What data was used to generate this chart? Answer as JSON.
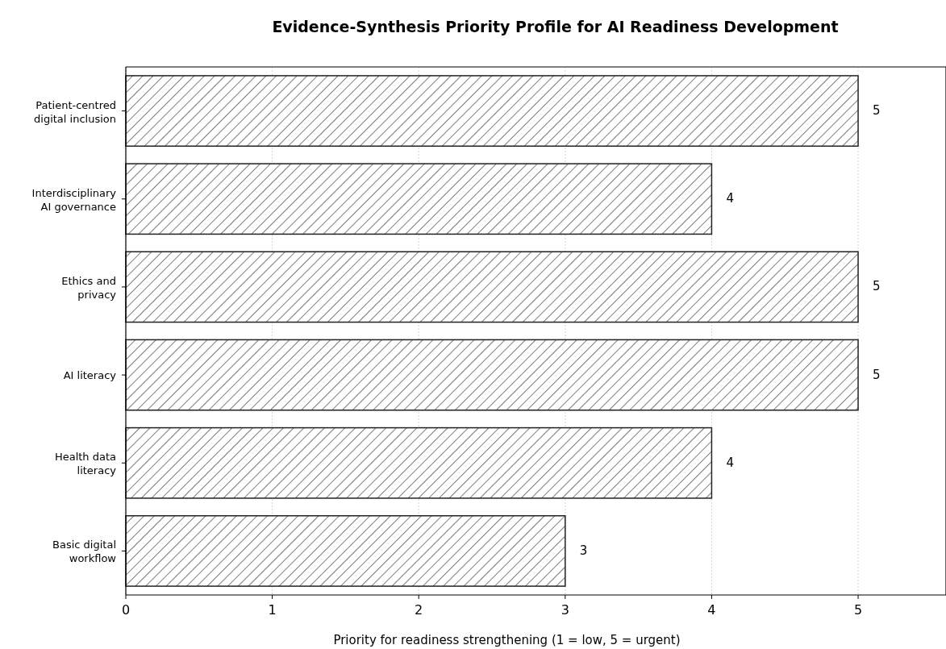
{
  "chart_data": {
    "type": "bar",
    "orientation": "horizontal",
    "title": "Evidence-Synthesis Priority Profile for AI Readiness Development",
    "xlabel": "Priority for readiness strengthening (1 = low, 5 = urgent)",
    "categories": [
      "Patient-centred digital inclusion",
      "Interdisciplinary AI governance",
      "Ethics and privacy",
      "AI literacy",
      "Health data literacy",
      "Basic digital workflow"
    ],
    "values": [
      5,
      4,
      5,
      5,
      4,
      3
    ],
    "color": "#ffffff",
    "xlim": [
      0,
      5.6
    ],
    "xticks": [
      0,
      1,
      2,
      3,
      4,
      5
    ],
    "grid": "x",
    "data_labels": true
  }
}
